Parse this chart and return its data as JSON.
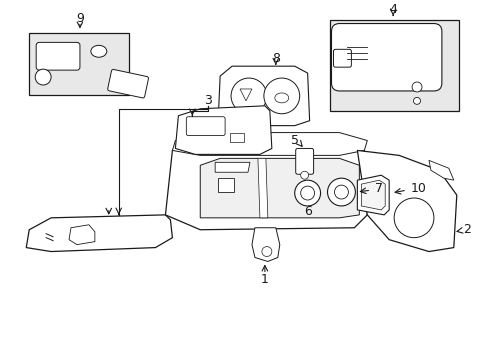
{
  "background_color": "#ffffff",
  "line_color": "#1a1a1a",
  "fill_light": "#e8e8e8",
  "figsize": [
    4.89,
    3.6
  ],
  "dpi": 100
}
